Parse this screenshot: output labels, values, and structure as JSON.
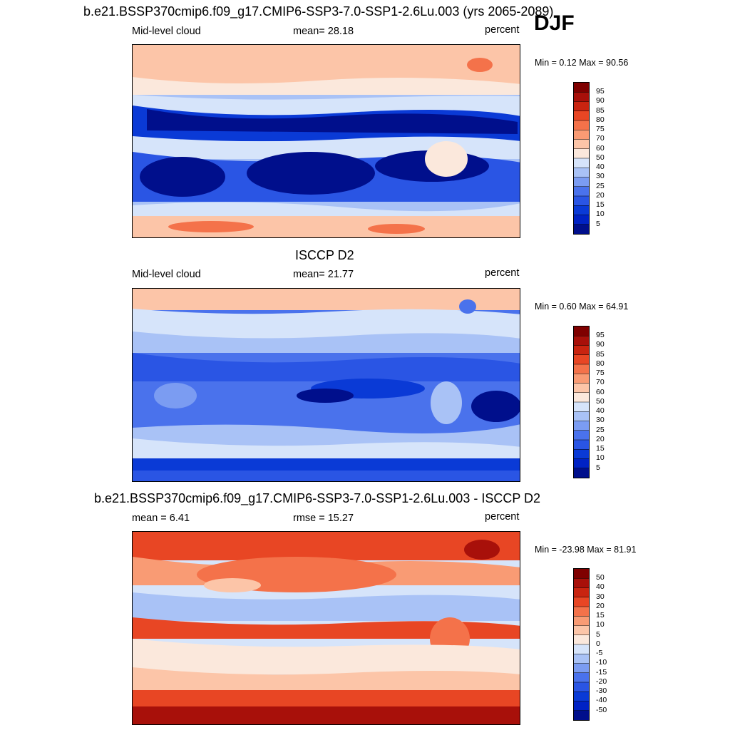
{
  "season_label": "DJF",
  "panels": [
    {
      "title": "b.e21.BSSP370cmip6.f09_g17.CMIP6-SSP3-7.0-SSP1-2.6Lu.003 (yrs 2065-2089)",
      "left_label": "Mid-level cloud",
      "center_label": "mean=  28.18",
      "units": "percent",
      "minmax": "Min =   0.12 Max =  90.56",
      "colorbar_levels": [
        "95",
        "90",
        "85",
        "80",
        "75",
        "70",
        "60",
        "50",
        "40",
        "30",
        "25",
        "20",
        "15",
        "10",
        "5"
      ]
    },
    {
      "title": "ISCCP D2",
      "left_label": "Mid-level cloud",
      "center_label": "mean=  21.77",
      "units": "percent",
      "minmax": "Min =   0.60 Max =  64.91",
      "colorbar_levels": [
        "95",
        "90",
        "85",
        "80",
        "75",
        "70",
        "60",
        "50",
        "40",
        "30",
        "25",
        "20",
        "15",
        "10",
        "5"
      ]
    },
    {
      "title": "b.e21.BSSP370cmip6.f09_g17.CMIP6-SSP3-7.0-SSP1-2.6Lu.003 - ISCCP D2",
      "left_label": "mean =   6.41",
      "center_label": "rmse =  15.27",
      "units": "percent",
      "minmax": "Min = -23.98 Max =  81.91",
      "colorbar_levels": [
        "50",
        "40",
        "30",
        "20",
        "15",
        "10",
        "5",
        "0",
        "-5",
        "-10",
        "-15",
        "-20",
        "-30",
        "-40",
        "-50"
      ]
    }
  ],
  "chart_data": [
    {
      "type": "heatmap",
      "title": "b.e21.BSSP370cmip6.f09_g17.CMIP6-SSP3-7.0-SSP1-2.6Lu.003 (yrs 2065-2089)",
      "variable": "Mid-level cloud",
      "units": "percent",
      "mean": 28.18,
      "min": 0.12,
      "max": 90.56,
      "levels": [
        5,
        10,
        15,
        20,
        25,
        30,
        40,
        50,
        60,
        70,
        75,
        80,
        85,
        90,
        95
      ]
    },
    {
      "type": "heatmap",
      "title": "ISCCP D2",
      "variable": "Mid-level cloud",
      "units": "percent",
      "mean": 21.77,
      "min": 0.6,
      "max": 64.91,
      "levels": [
        5,
        10,
        15,
        20,
        25,
        30,
        40,
        50,
        60,
        70,
        75,
        80,
        85,
        90,
        95
      ]
    },
    {
      "type": "heatmap",
      "title": "b.e21.BSSP370cmip6.f09_g17.CMIP6-SSP3-7.0-SSP1-2.6Lu.003 - ISCCP D2",
      "units": "percent",
      "mean": 6.41,
      "rmse": 15.27,
      "min": -23.98,
      "max": 81.91,
      "levels": [
        -50,
        -40,
        -30,
        -20,
        -15,
        -10,
        -5,
        0,
        5,
        10,
        15,
        20,
        30,
        40,
        50
      ]
    }
  ],
  "colors": {
    "scale": [
      "#000f8c",
      "#0022c4",
      "#0a3ad6",
      "#2a55e4",
      "#4a72ec",
      "#7b9cf2",
      "#a9c2f6",
      "#d6e4fa",
      "#fbe8dc",
      "#fcc5a8",
      "#f99b74",
      "#f4724a",
      "#e84624",
      "#c92410",
      "#a8100a",
      "#7f0000"
    ]
  }
}
